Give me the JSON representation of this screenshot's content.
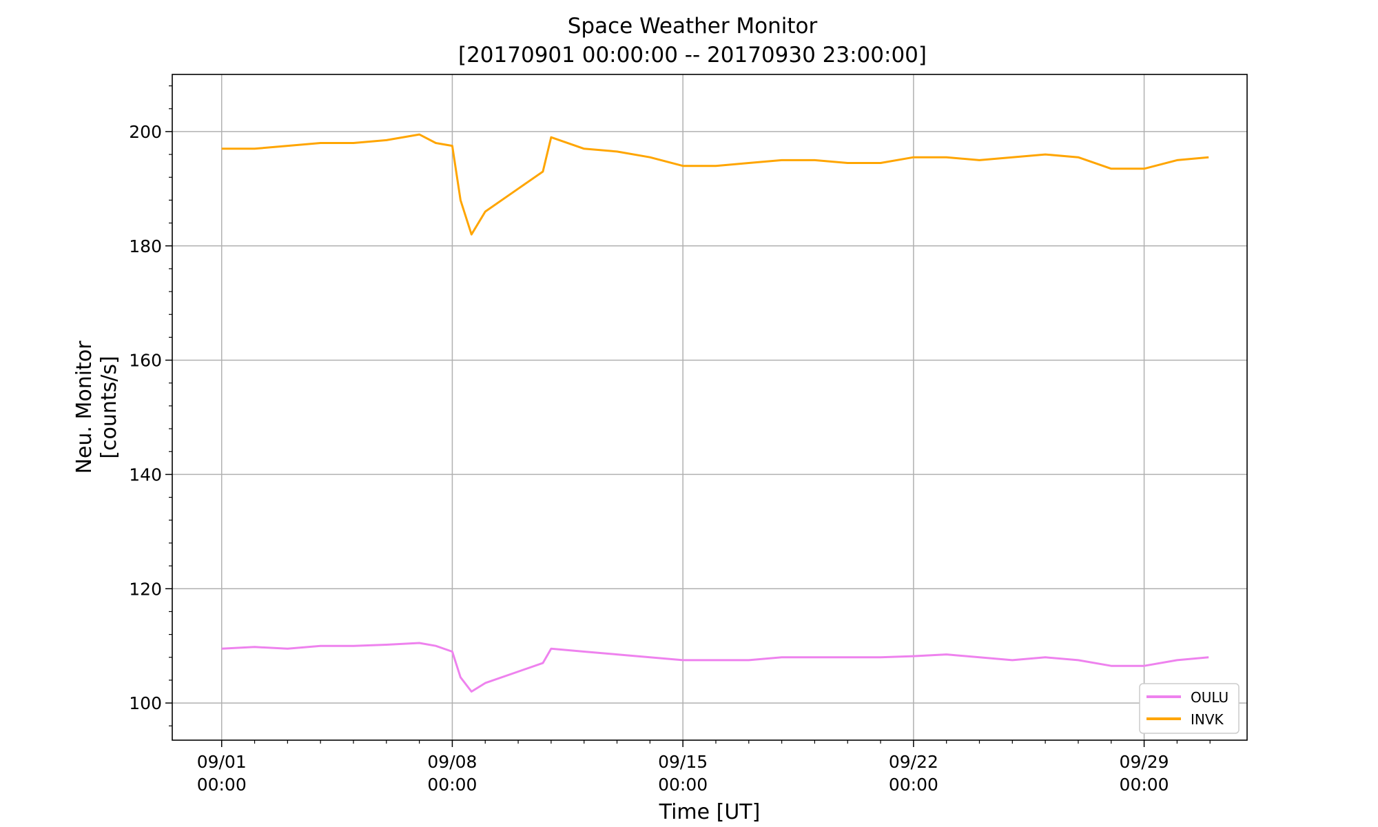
{
  "chart_data": {
    "type": "line",
    "title": "Space Weather Monitor",
    "subtitle": "[20170901 00:00:00 -- 20170930 23:00:00]",
    "xlabel": "Time [UT]",
    "ylabel": [
      "Neu. Monitor",
      "[counts/s]"
    ],
    "xlim": [
      "2017-08-30T12:00",
      "2017-10-02T03:00"
    ],
    "ylim": [
      93.5,
      210
    ],
    "x_ticks": [
      {
        "date": "2017-09-01T00:00",
        "line1": "09/01",
        "line2": "00:00"
      },
      {
        "date": "2017-09-08T00:00",
        "line1": "09/08",
        "line2": "00:00"
      },
      {
        "date": "2017-09-15T00:00",
        "line1": "09/15",
        "line2": "00:00"
      },
      {
        "date": "2017-09-22T00:00",
        "line1": "09/22",
        "line2": "00:00"
      },
      {
        "date": "2017-09-29T00:00",
        "line1": "09/29",
        "line2": "00:00"
      }
    ],
    "y_ticks": [
      100,
      120,
      140,
      160,
      180,
      200
    ],
    "grid": true,
    "legend_position": "bottom-right",
    "series": [
      {
        "name": "OULU",
        "color": "#ee82ee",
        "points": [
          [
            "2017-09-01T00:00",
            109.5
          ],
          [
            "2017-09-02T00:00",
            109.8
          ],
          [
            "2017-09-03T00:00",
            109.5
          ],
          [
            "2017-09-04T00:00",
            110.0
          ],
          [
            "2017-09-05T00:00",
            110.0
          ],
          [
            "2017-09-06T00:00",
            110.2
          ],
          [
            "2017-09-07T00:00",
            110.5
          ],
          [
            "2017-09-07T12:00",
            110.0
          ],
          [
            "2017-09-08T00:00",
            109.0
          ],
          [
            "2017-09-08T06:00",
            104.5
          ],
          [
            "2017-09-08T14:00",
            102.0
          ],
          [
            "2017-09-09T00:00",
            103.5
          ],
          [
            "2017-09-10T00:00",
            105.5
          ],
          [
            "2017-09-10T18:00",
            107.0
          ],
          [
            "2017-09-11T00:00",
            109.5
          ],
          [
            "2017-09-12T00:00",
            109.0
          ],
          [
            "2017-09-13T00:00",
            108.5
          ],
          [
            "2017-09-14T00:00",
            108.0
          ],
          [
            "2017-09-15T00:00",
            107.5
          ],
          [
            "2017-09-16T00:00",
            107.5
          ],
          [
            "2017-09-17T00:00",
            107.5
          ],
          [
            "2017-09-18T00:00",
            108.0
          ],
          [
            "2017-09-19T00:00",
            108.0
          ],
          [
            "2017-09-20T00:00",
            108.0
          ],
          [
            "2017-09-21T00:00",
            108.0
          ],
          [
            "2017-09-22T00:00",
            108.2
          ],
          [
            "2017-09-23T00:00",
            108.5
          ],
          [
            "2017-09-24T00:00",
            108.0
          ],
          [
            "2017-09-25T00:00",
            107.5
          ],
          [
            "2017-09-26T00:00",
            108.0
          ],
          [
            "2017-09-27T00:00",
            107.5
          ],
          [
            "2017-09-28T00:00",
            106.5
          ],
          [
            "2017-09-29T00:00",
            106.5
          ],
          [
            "2017-09-30T00:00",
            107.5
          ],
          [
            "2017-09-30T23:00",
            108.0
          ]
        ]
      },
      {
        "name": "INVK",
        "color": "#ffa500",
        "points": [
          [
            "2017-09-01T00:00",
            197.0
          ],
          [
            "2017-09-02T00:00",
            197.0
          ],
          [
            "2017-09-03T00:00",
            197.5
          ],
          [
            "2017-09-04T00:00",
            198.0
          ],
          [
            "2017-09-05T00:00",
            198.0
          ],
          [
            "2017-09-06T00:00",
            198.5
          ],
          [
            "2017-09-07T00:00",
            199.5
          ],
          [
            "2017-09-07T12:00",
            198.0
          ],
          [
            "2017-09-08T00:00",
            197.5
          ],
          [
            "2017-09-08T06:00",
            188.0
          ],
          [
            "2017-09-08T14:00",
            182.0
          ],
          [
            "2017-09-09T00:00",
            186.0
          ],
          [
            "2017-09-10T00:00",
            190.0
          ],
          [
            "2017-09-10T18:00",
            193.0
          ],
          [
            "2017-09-11T00:00",
            199.0
          ],
          [
            "2017-09-12T00:00",
            197.0
          ],
          [
            "2017-09-13T00:00",
            196.5
          ],
          [
            "2017-09-14T00:00",
            195.5
          ],
          [
            "2017-09-15T00:00",
            194.0
          ],
          [
            "2017-09-16T00:00",
            194.0
          ],
          [
            "2017-09-17T00:00",
            194.5
          ],
          [
            "2017-09-18T00:00",
            195.0
          ],
          [
            "2017-09-19T00:00",
            195.0
          ],
          [
            "2017-09-20T00:00",
            194.5
          ],
          [
            "2017-09-21T00:00",
            194.5
          ],
          [
            "2017-09-22T00:00",
            195.5
          ],
          [
            "2017-09-23T00:00",
            195.5
          ],
          [
            "2017-09-24T00:00",
            195.0
          ],
          [
            "2017-09-25T00:00",
            195.5
          ],
          [
            "2017-09-26T00:00",
            196.0
          ],
          [
            "2017-09-27T00:00",
            195.5
          ],
          [
            "2017-09-28T00:00",
            193.5
          ],
          [
            "2017-09-29T00:00",
            193.5
          ],
          [
            "2017-09-30T00:00",
            195.0
          ],
          [
            "2017-09-30T23:00",
            195.5
          ]
        ]
      }
    ]
  }
}
